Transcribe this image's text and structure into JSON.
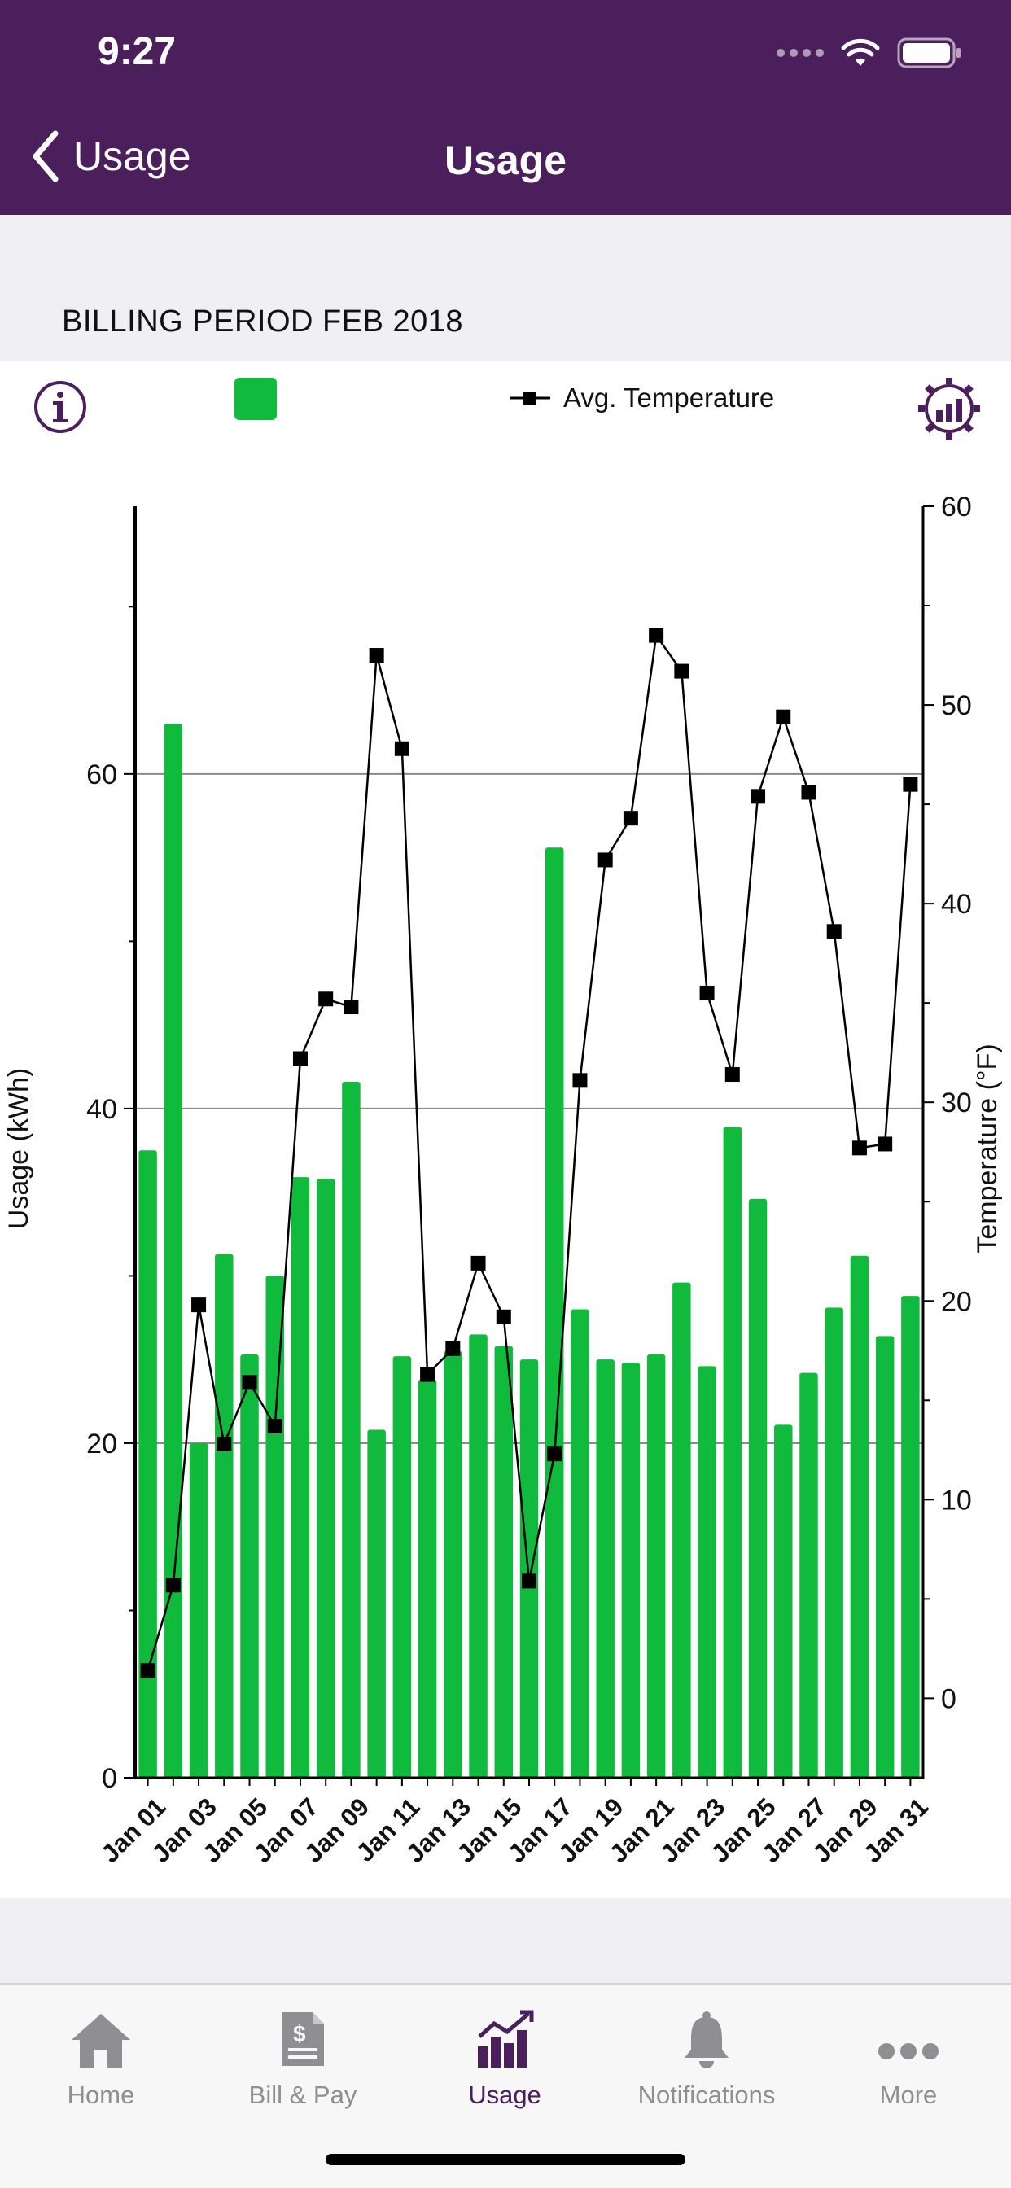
{
  "status_bar": {
    "time": "9:27"
  },
  "nav": {
    "back_label": "Usage",
    "title": "Usage"
  },
  "billing": {
    "label": "BILLING PERIOD FEB 2018"
  },
  "legend": {
    "usage_color": "#0fba3c",
    "temp_label": "Avg. Temperature"
  },
  "chart_data": {
    "type": "bar",
    "categories": [
      "Jan 01",
      "Jan 02",
      "Jan 03",
      "Jan 04",
      "Jan 05",
      "Jan 06",
      "Jan 07",
      "Jan 08",
      "Jan 09",
      "Jan 10",
      "Jan 11",
      "Jan 12",
      "Jan 13",
      "Jan 14",
      "Jan 15",
      "Jan 16",
      "Jan 17",
      "Jan 18",
      "Jan 19",
      "Jan 20",
      "Jan 21",
      "Jan 22",
      "Jan 23",
      "Jan 24",
      "Jan 25",
      "Jan 26",
      "Jan 27",
      "Jan 28",
      "Jan 29",
      "Jan 30",
      "Jan 31"
    ],
    "x_tick_labels": [
      "Jan 01",
      "Jan 03",
      "Jan 05",
      "Jan 07",
      "Jan 09",
      "Jan 11",
      "Jan 13",
      "Jan 15",
      "Jan 17",
      "Jan 19",
      "Jan 21",
      "Jan 23",
      "Jan 25",
      "Jan 27",
      "Jan 29",
      "Jan 31"
    ],
    "series": [
      {
        "type": "bar",
        "axis": "left",
        "color": "#0fba3c",
        "values": [
          37.5,
          63,
          20,
          31.3,
          25.3,
          30,
          35.9,
          35.8,
          41.6,
          20.8,
          25.2,
          23.8,
          25.5,
          26.5,
          25.8,
          25,
          55.6,
          28,
          25,
          24.8,
          25.3,
          29.6,
          24.6,
          38.9,
          34.6,
          21.1,
          24.2,
          28.1,
          31.2,
          26.4,
          28.8
        ]
      },
      {
        "type": "line",
        "axis": "right",
        "name": "Avg. Temperature",
        "color": "#000000",
        "marker": "square",
        "values": [
          1.4,
          5.7,
          19.8,
          12.8,
          15.9,
          13.7,
          32.2,
          35.2,
          34.8,
          52.5,
          47.8,
          16.3,
          17.6,
          21.9,
          19.2,
          5.9,
          12.3,
          31.1,
          42.2,
          44.3,
          53.5,
          51.7,
          35.5,
          31.4,
          45.4,
          49.4,
          45.6,
          38.6,
          27.7,
          27.9,
          46
        ]
      }
    ],
    "ylabel": "Usage (kWh)",
    "y2label": "Temperature (°F)",
    "ylim": [
      0,
      76
    ],
    "y_ticks": [
      0,
      20,
      40,
      60
    ],
    "y2lim": [
      -4,
      60
    ],
    "y2_ticks": [
      0,
      10,
      20,
      30,
      40,
      50,
      60
    ],
    "grid": "horizontal at 20, 40, 60"
  },
  "tabs": [
    {
      "label": "Home",
      "icon": "home-icon",
      "active": false
    },
    {
      "label": "Bill & Pay",
      "icon": "bill-icon",
      "active": false
    },
    {
      "label": "Usage",
      "icon": "usage-icon",
      "active": true
    },
    {
      "label": "Notifications",
      "icon": "bell-icon",
      "active": false
    },
    {
      "label": "More",
      "icon": "more-icon",
      "active": false
    }
  ]
}
